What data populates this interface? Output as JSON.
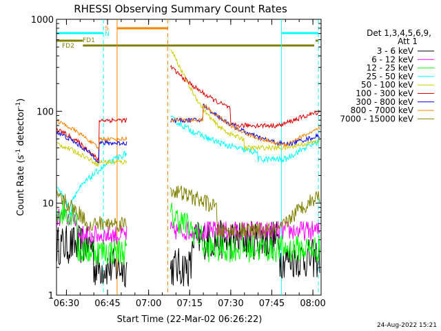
{
  "chart_data": {
    "type": "line",
    "title": "RHESSI Observing Summary Count Rates",
    "xlabel": "Start Time (22-Mar-02 06:26:22)",
    "ylabel_main": "Count Rate (s",
    "ylabel_sup1": "-1",
    "ylabel_mid": " detector",
    "ylabel_sup2": "-1",
    "ylabel_end": ")",
    "y_scale": "log",
    "ylim": [
      1,
      1000
    ],
    "x_range_minutes": [
      "06:26:22",
      "08:03:00"
    ],
    "x_ticks": [
      "06:30",
      "06:45",
      "07:00",
      "07:15",
      "07:30",
      "07:45",
      "08:00"
    ],
    "y_ticks": [
      "1",
      "10",
      "100",
      "1000"
    ],
    "legend_header": [
      "Det 1,3,4,5,6,9,",
      "Att 1"
    ],
    "legend_placement": "right",
    "series": [
      {
        "name": "3 - 6 keV",
        "color": "#000000"
      },
      {
        "name": "6 - 12 keV",
        "color": "#ff00ff"
      },
      {
        "name": "12 - 25 keV",
        "color": "#00ff00"
      },
      {
        "name": "25 - 50 keV",
        "color": "#00ffff"
      },
      {
        "name": "50 - 100 keV",
        "color": "#cccc00"
      },
      {
        "name": "100 - 300 keV",
        "color": "#dd0000"
      },
      {
        "name": "300 - 800 keV",
        "color": "#0000ee"
      },
      {
        "name": "800 - 7000 keV",
        "color": "#ff8000"
      },
      {
        "name": "7000 - 15000 keV",
        "color": "#808000"
      }
    ],
    "flag_labels": {
      "s": "S",
      "n": "N",
      "fd1": "FD1",
      "fd2": "FD2"
    },
    "footer_date": "24-Aug-2022 15:21"
  }
}
